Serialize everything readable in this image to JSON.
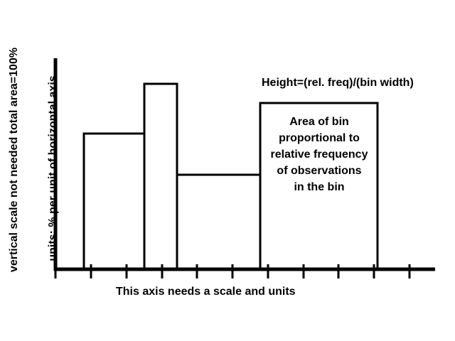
{
  "labels": {
    "vertical_scale": "vertical scale not needed     total area=100%",
    "vertical_units": "units: % per unit of horizontal axis",
    "height_formula": "Height=(rel. freq)/(bin width)",
    "bin_note": [
      "Area of bin",
      "proportional to",
      "relative frequency",
      "of observations",
      "in the bin"
    ],
    "horizontal_axis_note": "This axis needs a scale and units"
  }
}
